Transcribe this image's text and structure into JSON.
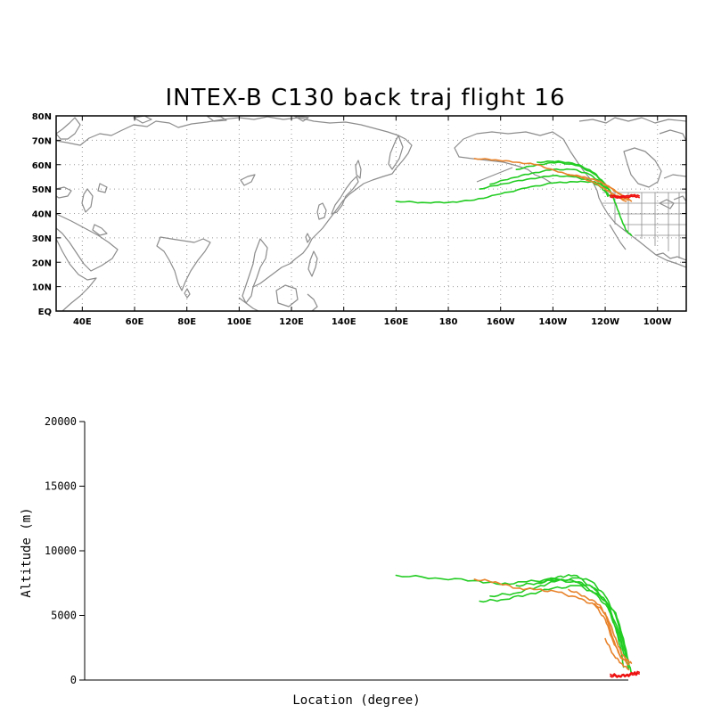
{
  "title": "INTEX-B C130 back traj flight 16",
  "colors": {
    "green": "#22cc22",
    "orange": "#e8822a",
    "red": "#ee1111",
    "coast": "#8c8c8c"
  },
  "map": {
    "lat_labels": [
      "EQ",
      "10N",
      "20N",
      "30N",
      "40N",
      "50N",
      "60N",
      "70N",
      "80N"
    ],
    "lon_labels": [
      "40E",
      "60E",
      "80E",
      "100E",
      "120E",
      "140E",
      "160E",
      "180",
      "160W",
      "140W",
      "120W",
      "100W"
    ],
    "lon_values": [
      40,
      60,
      80,
      100,
      120,
      140,
      160,
      180,
      200,
      220,
      240,
      260
    ],
    "lat_values": [
      0,
      10,
      20,
      30,
      40,
      50,
      60,
      70,
      80
    ],
    "xlim": [
      30,
      271
    ],
    "ylim": [
      0,
      80
    ]
  },
  "chart_data": {
    "type": "line",
    "xlabel": "Location (degree)",
    "ylabel": "Altitude (m)",
    "ylim": [
      0,
      20000
    ],
    "y_ticks": [
      0,
      5000,
      10000,
      15000,
      20000
    ],
    "y_tick_labels": [
      "0",
      "5000",
      "10000",
      "15000",
      "20000"
    ],
    "trajectories": [
      {
        "color": "green",
        "lonlat": [
          [
            160,
            45
          ],
          [
            170,
            44.5
          ],
          [
            180,
            44.5
          ],
          [
            190,
            45.5
          ],
          [
            200,
            48
          ],
          [
            210,
            50.5
          ],
          [
            220,
            52.5
          ],
          [
            228,
            53
          ],
          [
            236,
            53
          ],
          [
            240,
            51
          ],
          [
            242,
            49
          ],
          [
            244,
            44
          ],
          [
            246,
            38
          ],
          [
            248,
            33
          ],
          [
            250,
            31
          ]
        ],
        "altitude": [
          [
            160,
            8100
          ],
          [
            175,
            7900
          ],
          [
            190,
            7700
          ],
          [
            200,
            7400
          ],
          [
            210,
            7600
          ],
          [
            220,
            7800
          ],
          [
            230,
            7500
          ],
          [
            238,
            6500
          ],
          [
            244,
            5200
          ],
          [
            247,
            3200
          ],
          [
            249,
            1300
          ],
          [
            250,
            600
          ]
        ]
      },
      {
        "color": "green",
        "lonlat": [
          [
            192,
            50
          ],
          [
            200,
            52
          ],
          [
            210,
            54
          ],
          [
            220,
            55.5
          ],
          [
            228,
            55
          ],
          [
            234,
            53.5
          ],
          [
            238,
            51
          ],
          [
            240,
            49
          ],
          [
            242,
            47
          ]
        ],
        "altitude": [
          [
            192,
            6100
          ],
          [
            200,
            6200
          ],
          [
            210,
            6600
          ],
          [
            220,
            7100
          ],
          [
            230,
            7300
          ],
          [
            236,
            6700
          ],
          [
            241,
            5600
          ],
          [
            244,
            4000
          ],
          [
            246,
            2400
          ],
          [
            247,
            1000
          ]
        ]
      },
      {
        "color": "green",
        "lonlat": [
          [
            196,
            52
          ],
          [
            204,
            54.5
          ],
          [
            212,
            56.5
          ],
          [
            220,
            58
          ],
          [
            228,
            58
          ],
          [
            234,
            56
          ],
          [
            238,
            53
          ],
          [
            240,
            50
          ],
          [
            241,
            47
          ]
        ],
        "altitude": [
          [
            196,
            6500
          ],
          [
            205,
            6700
          ],
          [
            214,
            7200
          ],
          [
            222,
            7700
          ],
          [
            230,
            7900
          ],
          [
            236,
            7000
          ],
          [
            241,
            5800
          ],
          [
            245,
            3500
          ],
          [
            248,
            1500
          ],
          [
            249,
            900
          ]
        ]
      },
      {
        "color": "green",
        "lonlat": [
          [
            206,
            58
          ],
          [
            214,
            60
          ],
          [
            222,
            61
          ],
          [
            230,
            59.5
          ],
          [
            236,
            56
          ],
          [
            240,
            52
          ],
          [
            242,
            49
          ]
        ],
        "altitude": [
          [
            206,
            7300
          ],
          [
            214,
            7500
          ],
          [
            222,
            8000
          ],
          [
            228,
            8100
          ],
          [
            235,
            7600
          ],
          [
            240,
            6500
          ],
          [
            244,
            5000
          ],
          [
            247,
            2800
          ],
          [
            249,
            1400
          ]
        ]
      },
      {
        "color": "green",
        "lonlat": [
          [
            214,
            61
          ],
          [
            222,
            61.5
          ],
          [
            230,
            60
          ],
          [
            236,
            56.5
          ],
          [
            240,
            52
          ],
          [
            242,
            49
          ]
        ],
        "altitude": [
          [
            214,
            7500
          ],
          [
            222,
            7800
          ],
          [
            230,
            7600
          ],
          [
            236,
            7100
          ],
          [
            241,
            5900
          ],
          [
            245,
            3800
          ],
          [
            248,
            1800
          ]
        ]
      },
      {
        "color": "orange",
        "lonlat": [
          [
            190,
            62.5
          ],
          [
            198,
            62
          ],
          [
            206,
            61
          ],
          [
            214,
            60
          ],
          [
            222,
            57
          ],
          [
            230,
            55
          ],
          [
            236,
            52.5
          ],
          [
            240,
            50
          ],
          [
            244,
            47
          ],
          [
            248,
            45
          ]
        ],
        "altitude": [
          [
            190,
            7800
          ],
          [
            198,
            7600
          ],
          [
            206,
            7100
          ],
          [
            214,
            7000
          ],
          [
            222,
            6800
          ],
          [
            230,
            6300
          ],
          [
            236,
            5800
          ],
          [
            240,
            4700
          ],
          [
            243,
            3000
          ],
          [
            246,
            1800
          ],
          [
            249,
            1200
          ]
        ]
      },
      {
        "color": "orange",
        "lonlat": [
          [
            226,
            56
          ],
          [
            232,
            55
          ],
          [
            238,
            53
          ],
          [
            243,
            50
          ],
          [
            246,
            47.5
          ],
          [
            249,
            46
          ]
        ],
        "altitude": [
          [
            226,
            7000
          ],
          [
            232,
            6500
          ],
          [
            238,
            5800
          ],
          [
            242,
            4300
          ],
          [
            245,
            2600
          ],
          [
            248,
            1500
          ],
          [
            250,
            1300
          ]
        ]
      },
      {
        "color": "orange",
        "lonlat": [
          [
            236,
            54
          ],
          [
            240,
            52
          ],
          [
            244,
            49
          ],
          [
            247,
            47
          ],
          [
            250,
            45
          ]
        ],
        "altitude": [
          [
            236,
            5900
          ],
          [
            240,
            5200
          ],
          [
            243,
            3200
          ],
          [
            246,
            1700
          ],
          [
            249,
            1500
          ]
        ]
      },
      {
        "color": "orange",
        "lonlat": [
          [
            240,
            50
          ],
          [
            243,
            48
          ],
          [
            246,
            46.5
          ],
          [
            249,
            45.5
          ]
        ],
        "altitude": [
          [
            240,
            3200
          ],
          [
            243,
            2000
          ],
          [
            246,
            1300
          ],
          [
            249,
            800
          ]
        ]
      },
      {
        "color": "red",
        "lonlat": [
          [
            242,
            47.5
          ],
          [
            245,
            47
          ],
          [
            248,
            47.2
          ],
          [
            251,
            47.6
          ],
          [
            253,
            47.2
          ]
        ],
        "altitude": [
          [
            242,
            450
          ],
          [
            245,
            350
          ],
          [
            248,
            400
          ],
          [
            251,
            550
          ],
          [
            253,
            600
          ]
        ]
      },
      {
        "color": "red",
        "lonlat": [
          [
            242,
            46.8
          ],
          [
            245,
            46.5
          ],
          [
            248,
            46.6
          ],
          [
            251,
            47
          ],
          [
            253,
            46.5
          ]
        ],
        "altitude": [
          [
            242,
            300
          ],
          [
            245,
            280
          ],
          [
            248,
            320
          ],
          [
            251,
            420
          ],
          [
            253,
            480
          ]
        ]
      }
    ]
  }
}
